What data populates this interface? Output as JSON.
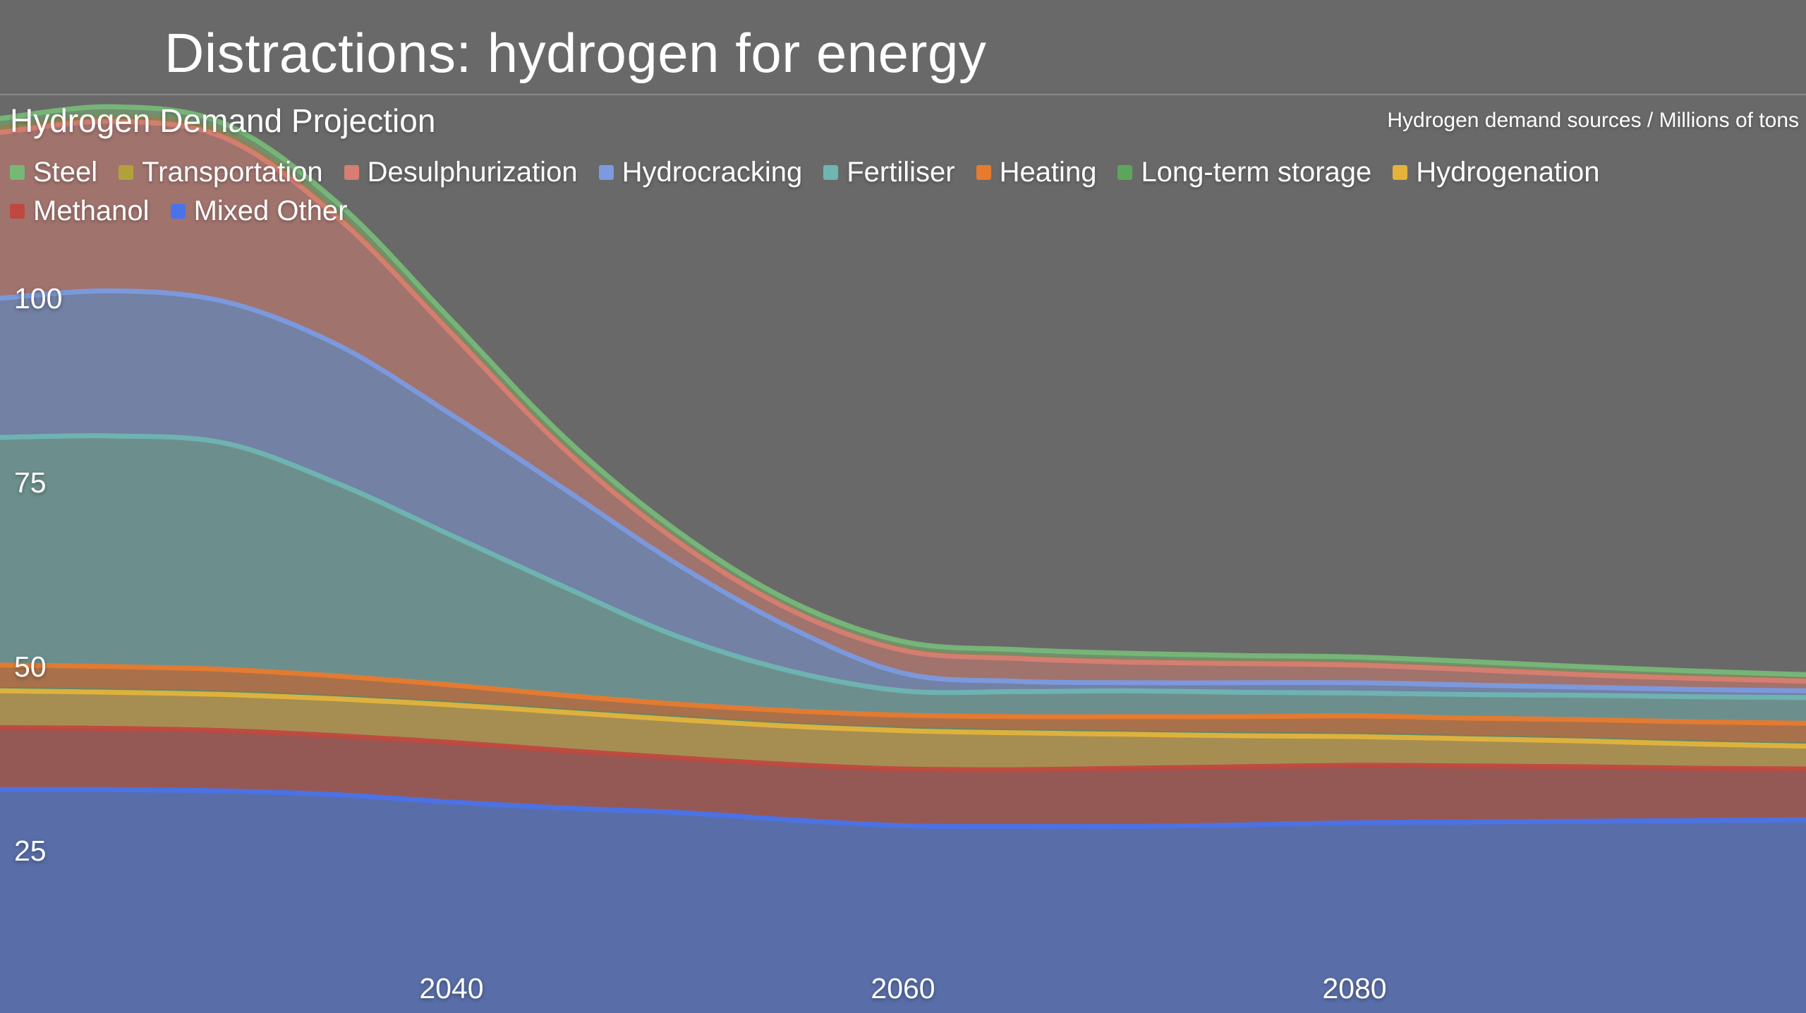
{
  "page": {
    "title": "Distractions: hydrogen for energy"
  },
  "chart": {
    "heading": "Hydrogen Demand Projection",
    "units_label": "Hydrogen demand sources / Millions of tons"
  },
  "chart_data": {
    "type": "area",
    "stacked": true,
    "title": "Hydrogen Demand Projection",
    "background": "#696969",
    "x_range": [
      2020,
      2100
    ],
    "years": [
      2020,
      2025,
      2030,
      2035,
      2040,
      2045,
      2050,
      2055,
      2060,
      2065,
      2070,
      2075,
      2080,
      2085,
      2090,
      2095,
      2100
    ],
    "x_ticks": [
      2040,
      2060,
      2080
    ],
    "y_ticks": [
      25,
      50,
      75,
      100
    ],
    "ylim": [
      0,
      130
    ],
    "grid": false,
    "legend_position": "top",
    "legend_rows": [
      [
        "Steel",
        "Transportation",
        "Desulphurization",
        "Hydrocracking",
        "Fertiliser",
        "Heating",
        "Long-term storage",
        "Hydrogenation"
      ],
      [
        "Methanol",
        "Mixed Other"
      ]
    ],
    "series": [
      {
        "name": "Mixed Other",
        "color": "#4a73ea",
        "line": true,
        "values": [
          33.3,
          33.3,
          33.1,
          32.6,
          31.6,
          30.8,
          30.2,
          29.2,
          28.4,
          28.3,
          28.3,
          28.5,
          28.8,
          28.9,
          29.0,
          29.1,
          29.2
        ]
      },
      {
        "name": "Methanol",
        "color": "#bf4940",
        "line": true,
        "values": [
          8.4,
          8.3,
          8.2,
          8.0,
          8.1,
          7.8,
          7.4,
          7.5,
          7.7,
          7.7,
          7.9,
          7.9,
          7.8,
          7.6,
          7.4,
          7.1,
          6.9
        ]
      },
      {
        "name": "Hydrogenation",
        "color": "#e3b33c",
        "line": true,
        "values": [
          5.0,
          4.9,
          4.9,
          5.0,
          5.1,
          5.2,
          5.2,
          5.2,
          5.2,
          5.0,
          4.6,
          4.2,
          3.9,
          3.7,
          3.5,
          3.3,
          3.1
        ]
      },
      {
        "name": "Long-term storage",
        "color": "#5ea55c",
        "line": false,
        "values": [
          0.5,
          0.5,
          0.5,
          0.5,
          0.5,
          0.5,
          0.5,
          0.5,
          0.5,
          0.5,
          0.5,
          0.5,
          0.5,
          0.5,
          0.5,
          0.5,
          0.5
        ]
      },
      {
        "name": "Heating",
        "color": "#e87a2e",
        "line": true,
        "values": [
          3.0,
          3.0,
          2.9,
          2.6,
          2.2,
          1.8,
          1.6,
          1.6,
          1.6,
          1.7,
          1.9,
          2.1,
          2.3,
          2.3,
          2.4,
          2.5,
          2.6
        ]
      },
      {
        "name": "Fertiliser",
        "color": "#6fb5b2",
        "line": true,
        "values": [
          30.9,
          31.3,
          30.7,
          26.1,
          20.3,
          14.7,
          9.2,
          5.4,
          3.3,
          3.4,
          3.5,
          3.3,
          3.1,
          3.2,
          3.3,
          3.4,
          3.5
        ]
      },
      {
        "name": "Hydrocracking",
        "color": "#7b9ae0",
        "line": true,
        "values": [
          18.9,
          19.7,
          19.2,
          18.8,
          16.4,
          13.3,
          9.8,
          5.9,
          2.4,
          1.4,
          1.1,
          1.3,
          1.4,
          1.3,
          1.1,
          1.0,
          0.9
        ]
      },
      {
        "name": "Desulphurization",
        "color": "#d87d72",
        "line": true,
        "values": [
          22.5,
          23.0,
          22.2,
          17.2,
          11.0,
          5.4,
          3.1,
          2.4,
          3.1,
          3.1,
          2.8,
          2.6,
          2.4,
          2.1,
          1.7,
          1.5,
          1.3
        ]
      },
      {
        "name": "Transportation",
        "color": "#b3a03c",
        "line": false,
        "values": [
          0.9,
          0.9,
          0.9,
          0.9,
          0.8,
          0.7,
          0.6,
          0.5,
          0.5,
          0.5,
          0.5,
          0.5,
          0.5,
          0.5,
          0.5,
          0.5,
          0.5
        ]
      },
      {
        "name": "Steel",
        "color": "#77b877",
        "line": true,
        "values": [
          1.0,
          1.1,
          1.0,
          1.1,
          1.0,
          0.9,
          0.8,
          0.7,
          0.7,
          0.7,
          0.7,
          0.6,
          0.6,
          0.6,
          0.6,
          0.5,
          0.4
        ]
      }
    ]
  }
}
